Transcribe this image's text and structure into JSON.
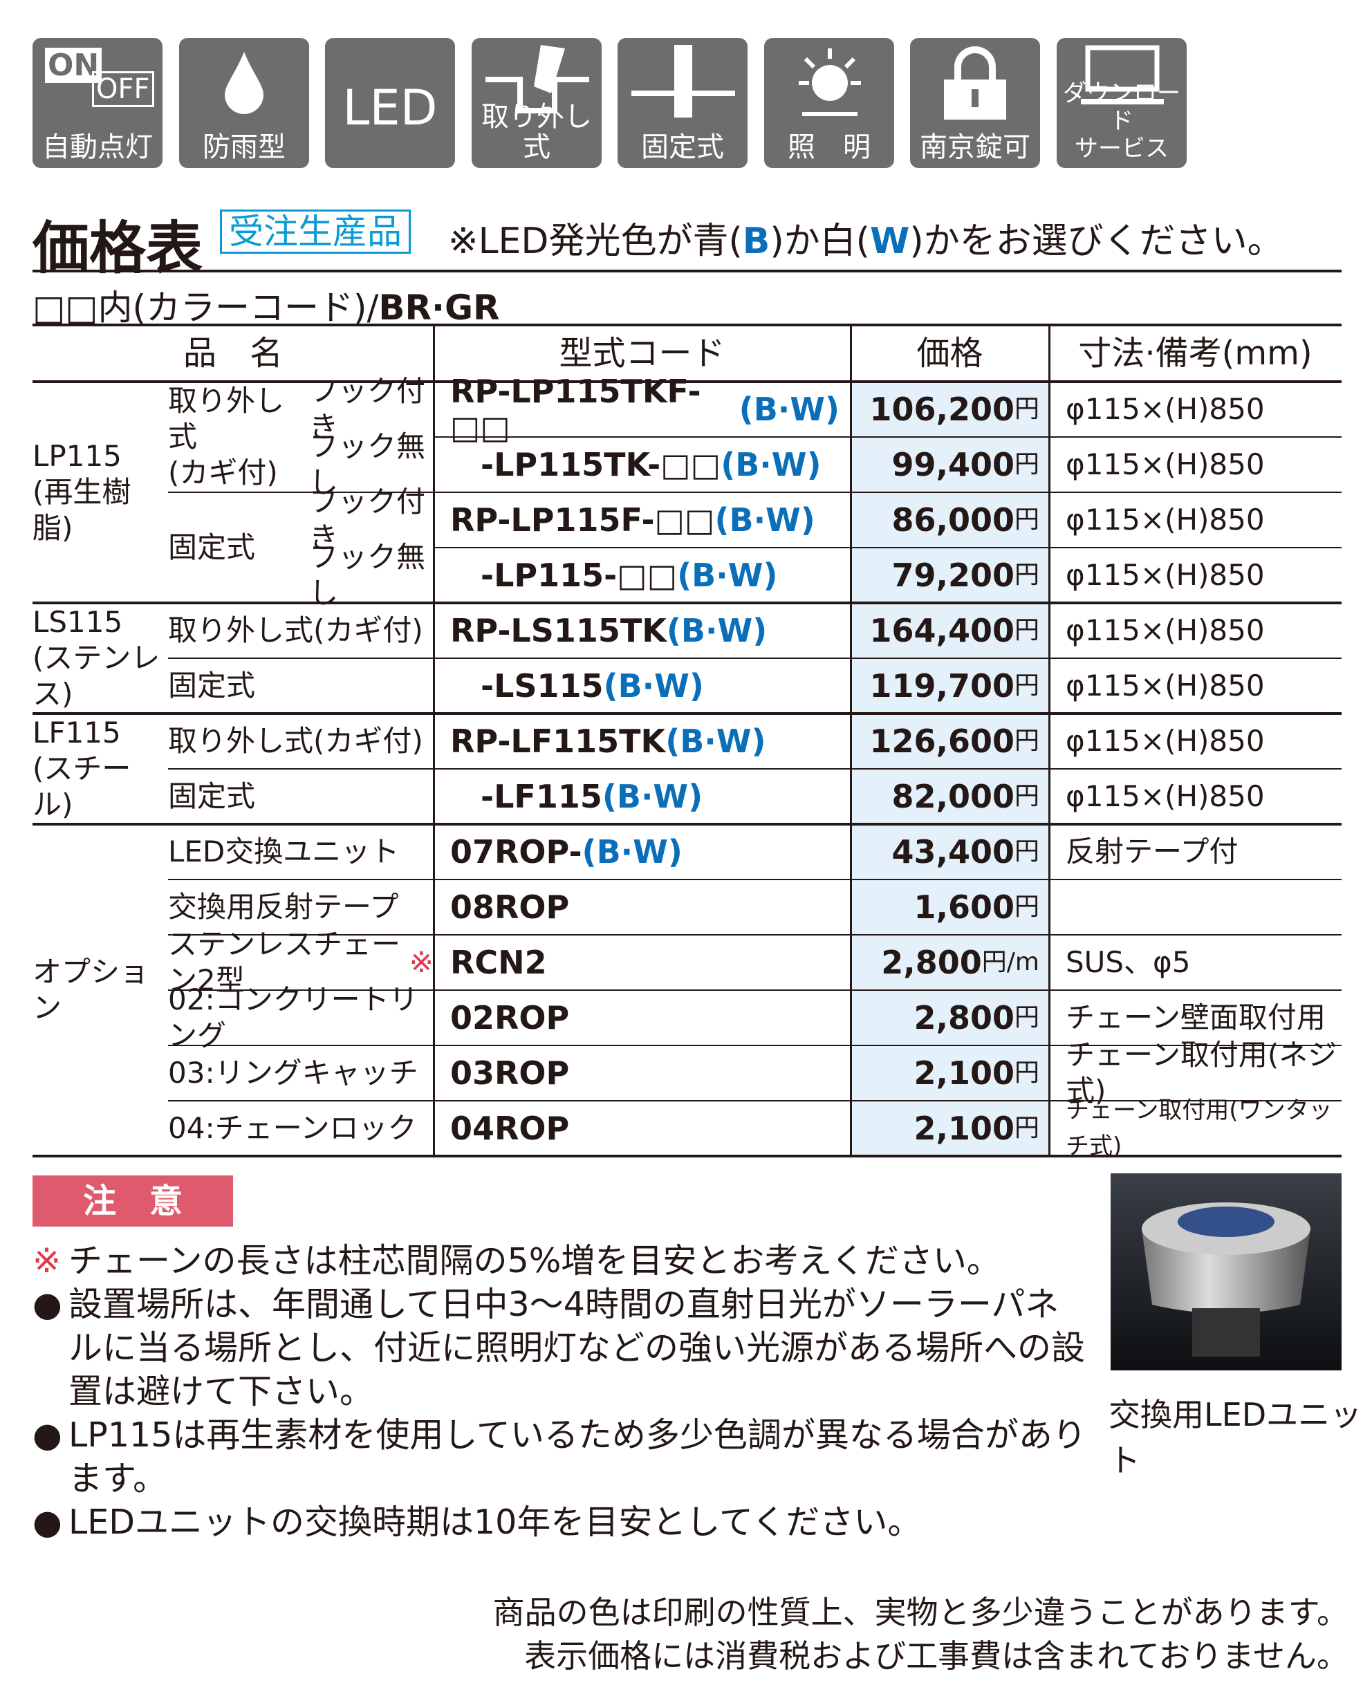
{
  "icons": [
    {
      "symbol_on": "ON",
      "symbol_off": "OFF",
      "label": "自動点灯"
    },
    {
      "label": "防雨型"
    },
    {
      "symbol": "LED"
    },
    {
      "label": "取り外し式"
    },
    {
      "label": "固定式"
    },
    {
      "label": "照　明"
    },
    {
      "label": "南京錠可"
    },
    {
      "label": "ダウンロード\nサービス"
    }
  ],
  "header": {
    "title": "価格表",
    "badge": "受注生産品",
    "note": [
      "※LED発光色が青(",
      "B",
      ")か白(",
      "W",
      ")かをお選びください。"
    ]
  },
  "color_code": {
    "text": "□□内(カラーコード)/",
    "codes": "BR·GR"
  },
  "table": {
    "headers": [
      "品　名",
      "型式コード",
      "価格",
      "寸法·備考(mm)"
    ],
    "sections": [
      {
        "name": "LP115\n(再生樹脂)",
        "types": [
          {
            "name": "取り外し式\n(カギ付)",
            "rows": [
              {
                "hook": "フック付き",
                "code": "RP-LP115TKF-□□",
                "variant": "(B·W)",
                "price": "106,200",
                "unit": "円",
                "spec": "φ115×(H)850"
              },
              {
                "hook": "フック無し",
                "code": "-LP115TK-□□",
                "variant": "(B·W)",
                "price": "99,400",
                "unit": "円",
                "spec": "φ115×(H)850"
              }
            ]
          },
          {
            "name": "固定式",
            "rows": [
              {
                "hook": "フック付き",
                "code": "RP-LP115F-□□",
                "variant": "(B·W)",
                "price": "86,000",
                "unit": "円",
                "spec": "φ115×(H)850"
              },
              {
                "hook": "フック無し",
                "code": "-LP115-□□",
                "variant": "(B·W)",
                "price": "79,200",
                "unit": "円",
                "spec": "φ115×(H)850"
              }
            ]
          }
        ]
      },
      {
        "name": "LS115\n(ステンレス)",
        "types": [
          {
            "name": "取り外し式(カギ付)",
            "rows": [
              {
                "code": "RP-LS115TK",
                "variant": "(B·W)",
                "price": "164,400",
                "unit": "円",
                "spec": "φ115×(H)850"
              }
            ]
          },
          {
            "name": "固定式",
            "rows": [
              {
                "code": "-LS115",
                "variant": "(B·W)",
                "price": "119,700",
                "unit": "円",
                "spec": "φ115×(H)850"
              }
            ]
          }
        ]
      },
      {
        "name": "LF115\n(スチール)",
        "types": [
          {
            "name": "取り外し式(カギ付)",
            "rows": [
              {
                "code": "RP-LF115TK",
                "variant": "(B·W)",
                "price": "126,600",
                "unit": "円",
                "spec": "φ115×(H)850"
              }
            ]
          },
          {
            "name": "固定式",
            "rows": [
              {
                "code": "-LF115",
                "variant": "(B·W)",
                "price": "82,000",
                "unit": "円",
                "spec": "φ115×(H)850"
              }
            ]
          }
        ]
      },
      {
        "name": "オプション",
        "types": [
          {
            "name": "LED交換ユニット",
            "rows": [
              {
                "code": "07ROP-",
                "variant": "(B·W)",
                "price": "43,400",
                "unit": "円",
                "spec": "反射テープ付"
              }
            ]
          },
          {
            "name": "交換用反射テープ",
            "rows": [
              {
                "code": "08ROP",
                "price": "1,600",
                "unit": "円"
              }
            ]
          },
          {
            "name": "ステンレスチェーン2型",
            "mark": "※",
            "rows": [
              {
                "code": "RCN2",
                "price": "2,800",
                "unit": "円/m",
                "spec": "SUS、φ5"
              }
            ]
          },
          {
            "name": "02:コンクリートリング",
            "rows": [
              {
                "code": "02ROP",
                "price": "2,800",
                "unit": "円",
                "spec": "チェーン壁面取付用"
              }
            ]
          },
          {
            "name": "03:リングキャッチ",
            "rows": [
              {
                "code": "03ROP",
                "price": "2,100",
                "unit": "円",
                "spec": "チェーン取付用(ネジ式)"
              }
            ]
          },
          {
            "name": "04:チェーンロック",
            "rows": [
              {
                "code": "04ROP",
                "price": "2,100",
                "unit": "円",
                "spec": "チェーン取付用(ワンタッチ式)"
              }
            ]
          }
        ]
      }
    ]
  },
  "notes": {
    "title": "注　意",
    "items": [
      {
        "bullet": "※",
        "text": "チェーンの長さは柱芯間隔の5%増を目安とお考えください。"
      },
      {
        "bullet": "●",
        "text": "設置場所は、年間通して日中3～4時間の直射日光がソーラーパネルに当る場所とし、付近に照明灯などの強い光源がある場所への設置は避けて下さい。"
      },
      {
        "bullet": "●",
        "text": "LP115は再生素材を使用しているため多少色調が異なる場合があります。"
      },
      {
        "bullet": "●",
        "text": "LEDユニットの交換時期は10年を目安としてください。"
      }
    ]
  },
  "photo": {
    "caption": "交換用LEDユニット"
  },
  "footer": [
    "商品の色は印刷の性質上、実物と多少違うことがあります。",
    "表示価格には消費税および工事費は含まれておりません。"
  ]
}
